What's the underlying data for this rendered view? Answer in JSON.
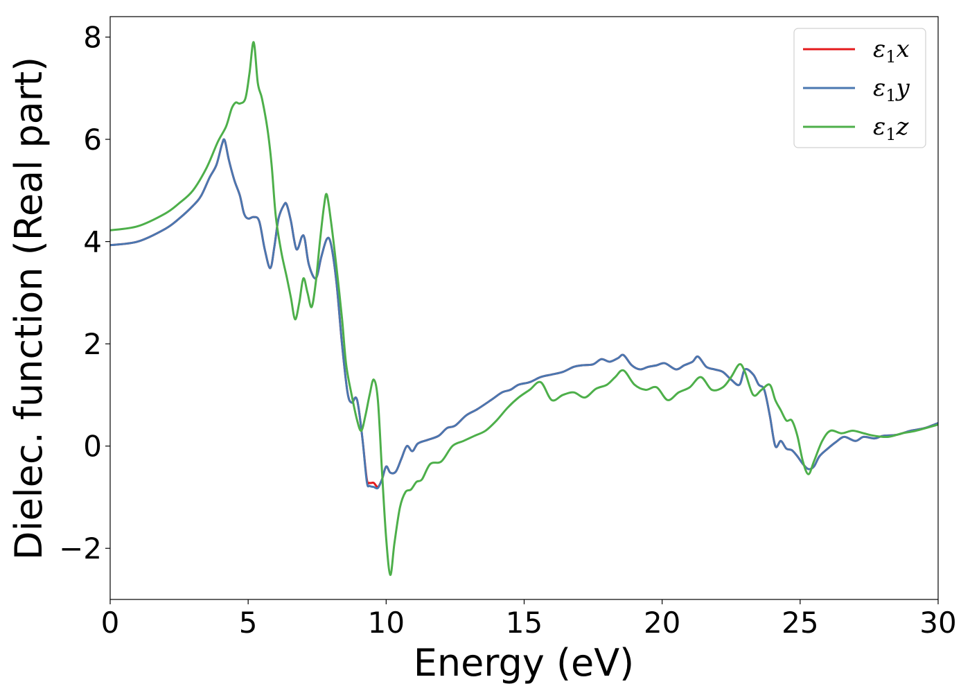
{
  "chart_data": {
    "type": "line",
    "xlabel": "Energy (eV)",
    "ylabel": "Dielec. function (Real part)",
    "xlim": [
      0,
      30
    ],
    "ylim": [
      -3,
      8.4
    ],
    "xticks": [
      0,
      5,
      10,
      15,
      20,
      25,
      30
    ],
    "yticks": [
      -2,
      0,
      2,
      4,
      6,
      8
    ],
    "xtick_labels": [
      "0",
      "5",
      "10",
      "15",
      "20",
      "25",
      "30"
    ],
    "ytick_labels": [
      "−2",
      "0",
      "2",
      "4",
      "6",
      "8"
    ],
    "grid": false,
    "legend_position": "top-right",
    "series": [
      {
        "name": "ε₁x",
        "legend_main": "ε",
        "legend_sub": "1",
        "legend_tail": "x",
        "color": "#e41a1c",
        "x": [
          0,
          1,
          2,
          2.5,
          3,
          3.3,
          3.6,
          3.85,
          4.05,
          4.15,
          4.3,
          4.5,
          4.7,
          4.85,
          5.0,
          5.2,
          5.4,
          5.6,
          5.8,
          5.95,
          6.1,
          6.3,
          6.4,
          6.55,
          6.75,
          6.95,
          7.05,
          7.2,
          7.45,
          7.65,
          7.85,
          8.0,
          8.2,
          8.4,
          8.6,
          8.75,
          8.9,
          9.0,
          9.15,
          9.3,
          9.4,
          9.55,
          9.7,
          9.85,
          10.0,
          10.15,
          10.35,
          10.55,
          10.75,
          10.95,
          11.15,
          11.5,
          11.9,
          12.2,
          12.5,
          12.9,
          13.3,
          13.8,
          14.2,
          14.5,
          14.8,
          15.2,
          15.6,
          16.0,
          16.4,
          16.8,
          17.1,
          17.5,
          17.8,
          18.1,
          18.4,
          18.6,
          18.9,
          19.2,
          19.5,
          19.8,
          20.1,
          20.5,
          20.8,
          21.1,
          21.3,
          21.6,
          21.9,
          22.2,
          22.5,
          22.8,
          23.0,
          23.3,
          23.5,
          23.7,
          23.9,
          24.1,
          24.3,
          24.5,
          24.7,
          24.9,
          25.1,
          25.3,
          25.5,
          25.7,
          26.0,
          26.3,
          26.6,
          27.0,
          27.3,
          27.7,
          28.0,
          28.5,
          29.0,
          29.5,
          30.0
        ],
        "y": [
          3.93,
          4.0,
          4.25,
          4.45,
          4.7,
          4.9,
          5.25,
          5.5,
          5.9,
          5.98,
          5.6,
          5.2,
          4.9,
          4.55,
          4.45,
          4.48,
          4.4,
          3.85,
          3.48,
          3.9,
          4.45,
          4.72,
          4.72,
          4.4,
          3.85,
          4.1,
          4.05,
          3.55,
          3.28,
          3.7,
          4.05,
          3.95,
          3.2,
          2.0,
          1.05,
          0.85,
          0.95,
          0.75,
          0.1,
          -0.65,
          -0.72,
          -0.72,
          -0.8,
          -0.65,
          -0.4,
          -0.52,
          -0.5,
          -0.25,
          0.0,
          -0.1,
          0.05,
          0.12,
          0.2,
          0.35,
          0.4,
          0.6,
          0.72,
          0.9,
          1.05,
          1.1,
          1.2,
          1.25,
          1.35,
          1.4,
          1.45,
          1.55,
          1.58,
          1.6,
          1.7,
          1.65,
          1.72,
          1.78,
          1.58,
          1.5,
          1.55,
          1.58,
          1.62,
          1.5,
          1.58,
          1.65,
          1.75,
          1.55,
          1.5,
          1.45,
          1.3,
          1.2,
          1.5,
          1.4,
          1.2,
          1.1,
          0.6,
          0.0,
          0.1,
          -0.05,
          -0.08,
          -0.2,
          -0.35,
          -0.45,
          -0.4,
          -0.2,
          -0.05,
          0.08,
          0.18,
          0.1,
          0.18,
          0.15,
          0.2,
          0.22,
          0.3,
          0.35,
          0.45
        ]
      },
      {
        "name": "ε₁y",
        "legend_main": "ε",
        "legend_sub": "1",
        "legend_tail": "y",
        "color": "#4a77b0",
        "x": [
          0,
          1,
          2,
          2.5,
          3,
          3.3,
          3.6,
          3.85,
          4.05,
          4.15,
          4.3,
          4.5,
          4.7,
          4.85,
          5.0,
          5.2,
          5.4,
          5.6,
          5.8,
          5.95,
          6.1,
          6.3,
          6.4,
          6.55,
          6.75,
          6.95,
          7.05,
          7.2,
          7.45,
          7.65,
          7.85,
          8.0,
          8.2,
          8.4,
          8.6,
          8.75,
          8.9,
          9.0,
          9.15,
          9.3,
          9.4,
          9.55,
          9.7,
          9.85,
          10.0,
          10.15,
          10.35,
          10.55,
          10.75,
          10.95,
          11.15,
          11.5,
          11.9,
          12.2,
          12.5,
          12.9,
          13.3,
          13.8,
          14.2,
          14.5,
          14.8,
          15.2,
          15.6,
          16.0,
          16.4,
          16.8,
          17.1,
          17.5,
          17.8,
          18.1,
          18.4,
          18.6,
          18.9,
          19.2,
          19.5,
          19.8,
          20.1,
          20.5,
          20.8,
          21.1,
          21.3,
          21.6,
          21.9,
          22.2,
          22.5,
          22.8,
          23.0,
          23.3,
          23.5,
          23.7,
          23.9,
          24.1,
          24.3,
          24.5,
          24.7,
          24.9,
          25.1,
          25.3,
          25.5,
          25.7,
          26.0,
          26.3,
          26.6,
          27.0,
          27.3,
          27.7,
          28.0,
          28.5,
          29.0,
          29.5,
          30.0
        ],
        "y": [
          3.93,
          4.0,
          4.25,
          4.45,
          4.7,
          4.9,
          5.25,
          5.5,
          5.9,
          5.98,
          5.6,
          5.2,
          4.9,
          4.55,
          4.45,
          4.48,
          4.4,
          3.85,
          3.48,
          3.9,
          4.45,
          4.72,
          4.72,
          4.4,
          3.85,
          4.1,
          4.05,
          3.55,
          3.28,
          3.7,
          4.05,
          3.95,
          3.2,
          2.0,
          1.05,
          0.85,
          0.95,
          0.75,
          0.1,
          -0.7,
          -0.78,
          -0.8,
          -0.82,
          -0.65,
          -0.4,
          -0.52,
          -0.5,
          -0.25,
          0.0,
          -0.1,
          0.05,
          0.12,
          0.2,
          0.35,
          0.4,
          0.6,
          0.72,
          0.9,
          1.05,
          1.1,
          1.2,
          1.25,
          1.35,
          1.4,
          1.45,
          1.55,
          1.58,
          1.6,
          1.7,
          1.65,
          1.72,
          1.78,
          1.58,
          1.5,
          1.55,
          1.58,
          1.62,
          1.5,
          1.58,
          1.65,
          1.75,
          1.55,
          1.5,
          1.45,
          1.3,
          1.2,
          1.5,
          1.4,
          1.2,
          1.1,
          0.6,
          0.0,
          0.1,
          -0.05,
          -0.08,
          -0.2,
          -0.35,
          -0.45,
          -0.4,
          -0.2,
          -0.05,
          0.08,
          0.18,
          0.1,
          0.18,
          0.15,
          0.2,
          0.22,
          0.3,
          0.35,
          0.45
        ]
      },
      {
        "name": "ε₁z",
        "legend_main": "ε",
        "legend_sub": "1",
        "legend_tail": "z",
        "color": "#4daf4a",
        "x": [
          0,
          1,
          2,
          2.5,
          3,
          3.5,
          3.9,
          4.2,
          4.4,
          4.55,
          4.7,
          4.9,
          5.05,
          5.2,
          5.35,
          5.5,
          5.7,
          5.85,
          6.0,
          6.2,
          6.4,
          6.55,
          6.7,
          6.85,
          7.0,
          7.15,
          7.3,
          7.45,
          7.6,
          7.75,
          7.85,
          8.0,
          8.2,
          8.4,
          8.55,
          8.75,
          8.95,
          9.1,
          9.25,
          9.4,
          9.55,
          9.7,
          9.85,
          10.0,
          10.15,
          10.3,
          10.5,
          10.7,
          10.9,
          11.1,
          11.3,
          11.6,
          12.0,
          12.4,
          12.8,
          13.2,
          13.6,
          14.0,
          14.4,
          14.8,
          15.2,
          15.6,
          16.0,
          16.4,
          16.8,
          17.2,
          17.6,
          18.0,
          18.3,
          18.6,
          19.0,
          19.4,
          19.8,
          20.2,
          20.6,
          21.0,
          21.4,
          21.8,
          22.2,
          22.5,
          22.8,
          23.0,
          23.3,
          23.6,
          23.9,
          24.1,
          24.3,
          24.5,
          24.7,
          24.9,
          25.1,
          25.3,
          25.5,
          25.8,
          26.1,
          26.5,
          26.9,
          27.3,
          27.7,
          28.2,
          28.7,
          29.2,
          30.0
        ],
        "y": [
          4.22,
          4.3,
          4.55,
          4.75,
          5.0,
          5.45,
          5.95,
          6.25,
          6.6,
          6.72,
          6.7,
          6.8,
          7.3,
          7.9,
          7.1,
          6.8,
          6.2,
          5.5,
          4.5,
          3.8,
          3.3,
          2.9,
          2.48,
          2.8,
          3.28,
          3.0,
          2.72,
          3.2,
          4.0,
          4.7,
          4.92,
          4.4,
          3.5,
          2.5,
          1.6,
          1.0,
          0.5,
          0.3,
          0.6,
          1.0,
          1.3,
          0.9,
          -0.5,
          -1.8,
          -2.52,
          -1.9,
          -1.2,
          -0.9,
          -0.85,
          -0.7,
          -0.65,
          -0.35,
          -0.3,
          0.0,
          0.1,
          0.2,
          0.3,
          0.5,
          0.75,
          0.95,
          1.1,
          1.25,
          0.9,
          1.0,
          1.05,
          0.95,
          1.12,
          1.2,
          1.35,
          1.48,
          1.2,
          1.1,
          1.15,
          0.9,
          1.05,
          1.15,
          1.35,
          1.1,
          1.15,
          1.35,
          1.6,
          1.45,
          1.0,
          1.1,
          1.2,
          0.9,
          0.7,
          0.5,
          0.5,
          0.2,
          -0.3,
          -0.55,
          -0.3,
          0.1,
          0.3,
          0.25,
          0.3,
          0.25,
          0.2,
          0.18,
          0.25,
          0.3,
          0.42
        ]
      }
    ]
  }
}
